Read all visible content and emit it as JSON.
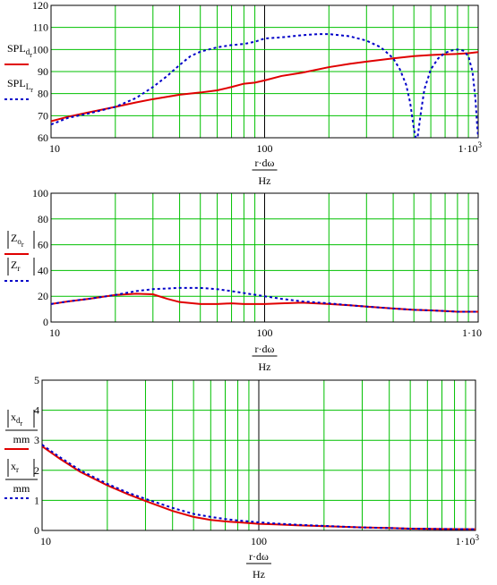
{
  "colors": {
    "grid": "#00c000",
    "series1": "#e00000",
    "series2": "#0000c8",
    "axis": "#000000"
  },
  "charts": [
    {
      "id": "spl",
      "type": "line",
      "xscale": "log",
      "xlim": [
        10,
        1000
      ],
      "ylim": [
        60,
        120
      ],
      "yticks": [
        "60",
        "70",
        "80",
        "90",
        "100",
        "110",
        "120"
      ],
      "xticks": [
        "10",
        "100",
        "1·10³"
      ],
      "xlabel_num": "r·dω",
      "xlabel_den": "Hz",
      "legend": [
        {
          "main": "SPL",
          "sub": "d",
          "subsub": "r",
          "style": "solid"
        },
        {
          "main": "SPL",
          "sub": "L",
          "subsub": "r",
          "style": "dash"
        }
      ],
      "series": [
        {
          "x": [
            10,
            12,
            15,
            20,
            25,
            30,
            40,
            50,
            60,
            70,
            80,
            90,
            100,
            120,
            150,
            200,
            250,
            300,
            400,
            500,
            600,
            700,
            800,
            900,
            1000
          ],
          "y": [
            67.5,
            69.5,
            71.5,
            74,
            76,
            77.5,
            79.5,
            80.5,
            81.5,
            83,
            84.5,
            85,
            86,
            88,
            89.5,
            92,
            93.5,
            94.5,
            96,
            97,
            97.5,
            97.8,
            98,
            98.3,
            98.8
          ]
        },
        {
          "x": [
            10,
            12,
            15,
            20,
            25,
            30,
            35,
            40,
            45,
            50,
            60,
            70,
            80,
            90,
            100,
            120,
            150,
            180,
            200,
            250,
            300,
            350,
            400,
            430,
            460,
            480,
            500,
            510,
            520,
            540,
            560,
            600,
            650,
            700,
            750,
            800,
            850,
            900,
            940,
            970,
            990,
            1000
          ],
          "y": [
            66,
            69,
            71,
            74,
            78,
            83,
            88,
            93,
            97,
            99,
            101,
            102,
            102.5,
            103.5,
            105,
            105.5,
            106.5,
            107,
            107,
            106,
            104,
            101,
            96,
            91,
            84,
            76,
            64,
            60,
            60,
            72,
            82,
            91,
            96,
            98.5,
            99.5,
            100,
            99.5,
            97,
            90,
            78,
            65,
            60
          ]
        }
      ]
    },
    {
      "id": "impedance",
      "type": "line",
      "xscale": "log",
      "xlim": [
        10,
        1000
      ],
      "ylim": [
        0,
        100
      ],
      "yticks": [
        "0",
        "20",
        "40",
        "60",
        "80",
        "100"
      ],
      "xticks": [
        "10",
        "100",
        "1·10"
      ],
      "xlabel_num": "r·dω",
      "xlabel_den": "Hz",
      "legend": [
        {
          "main": "Z",
          "sub": "o",
          "subsub": "r",
          "style": "solid",
          "abs": true
        },
        {
          "main": "Z",
          "sub": "r",
          "subsub": "",
          "style": "dash",
          "abs": true
        }
      ],
      "series": [
        {
          "x": [
            10,
            12,
            15,
            20,
            25,
            30,
            35,
            40,
            50,
            60,
            70,
            80,
            100,
            120,
            150,
            200,
            250,
            300,
            400,
            500,
            600,
            700,
            800,
            1000
          ],
          "y": [
            14,
            16,
            18,
            21,
            22,
            21.5,
            18,
            15.5,
            14,
            14,
            14.5,
            14,
            14,
            14.5,
            15,
            14,
            13,
            12,
            10.5,
            9.5,
            9,
            8.5,
            8,
            8
          ]
        },
        {
          "x": [
            10,
            12,
            15,
            20,
            25,
            30,
            40,
            50,
            60,
            70,
            80,
            100,
            120,
            150,
            200,
            250,
            300,
            400,
            500,
            600,
            700,
            800,
            1000
          ],
          "y": [
            14,
            16,
            18,
            21,
            24,
            25.5,
            26.5,
            26.5,
            25.5,
            24,
            22.5,
            20,
            18,
            16,
            14.5,
            13,
            12,
            10.5,
            9.5,
            9,
            8.5,
            8,
            8
          ]
        }
      ]
    },
    {
      "id": "excursion",
      "type": "line",
      "xscale": "log",
      "xlim": [
        10,
        1000
      ],
      "ylim": [
        0,
        5
      ],
      "yticks": [
        "0",
        "1",
        "2",
        "3",
        "4",
        "5"
      ],
      "xticks": [
        "10",
        "100",
        "1·10³"
      ],
      "xlabel_num": "r·dω",
      "xlabel_den": "Hz",
      "legend": [
        {
          "main": "x",
          "sub": "d",
          "subsub": "r",
          "style": "solid",
          "abs": true,
          "den": "mm"
        },
        {
          "main": "x",
          "sub": "r",
          "subsub": "",
          "style": "dash",
          "abs": true,
          "den": "mm"
        }
      ],
      "series": [
        {
          "x": [
            10,
            12,
            15,
            20,
            25,
            30,
            40,
            50,
            60,
            70,
            80,
            100,
            120,
            150,
            200,
            300,
            400,
            500,
            700,
            1000
          ],
          "y": [
            2.8,
            2.4,
            1.95,
            1.5,
            1.2,
            0.98,
            0.65,
            0.45,
            0.35,
            0.3,
            0.27,
            0.22,
            0.2,
            0.17,
            0.14,
            0.1,
            0.08,
            0.06,
            0.05,
            0.04
          ]
        },
        {
          "x": [
            10,
            12,
            15,
            20,
            25,
            30,
            40,
            50,
            60,
            70,
            80,
            100,
            120,
            150,
            200,
            300,
            400,
            500,
            700,
            1000
          ],
          "y": [
            2.85,
            2.45,
            2.0,
            1.55,
            1.25,
            1.05,
            0.75,
            0.55,
            0.45,
            0.38,
            0.33,
            0.27,
            0.23,
            0.19,
            0.15,
            0.1,
            0.08,
            0.06,
            0.05,
            0.04
          ]
        }
      ]
    }
  ]
}
